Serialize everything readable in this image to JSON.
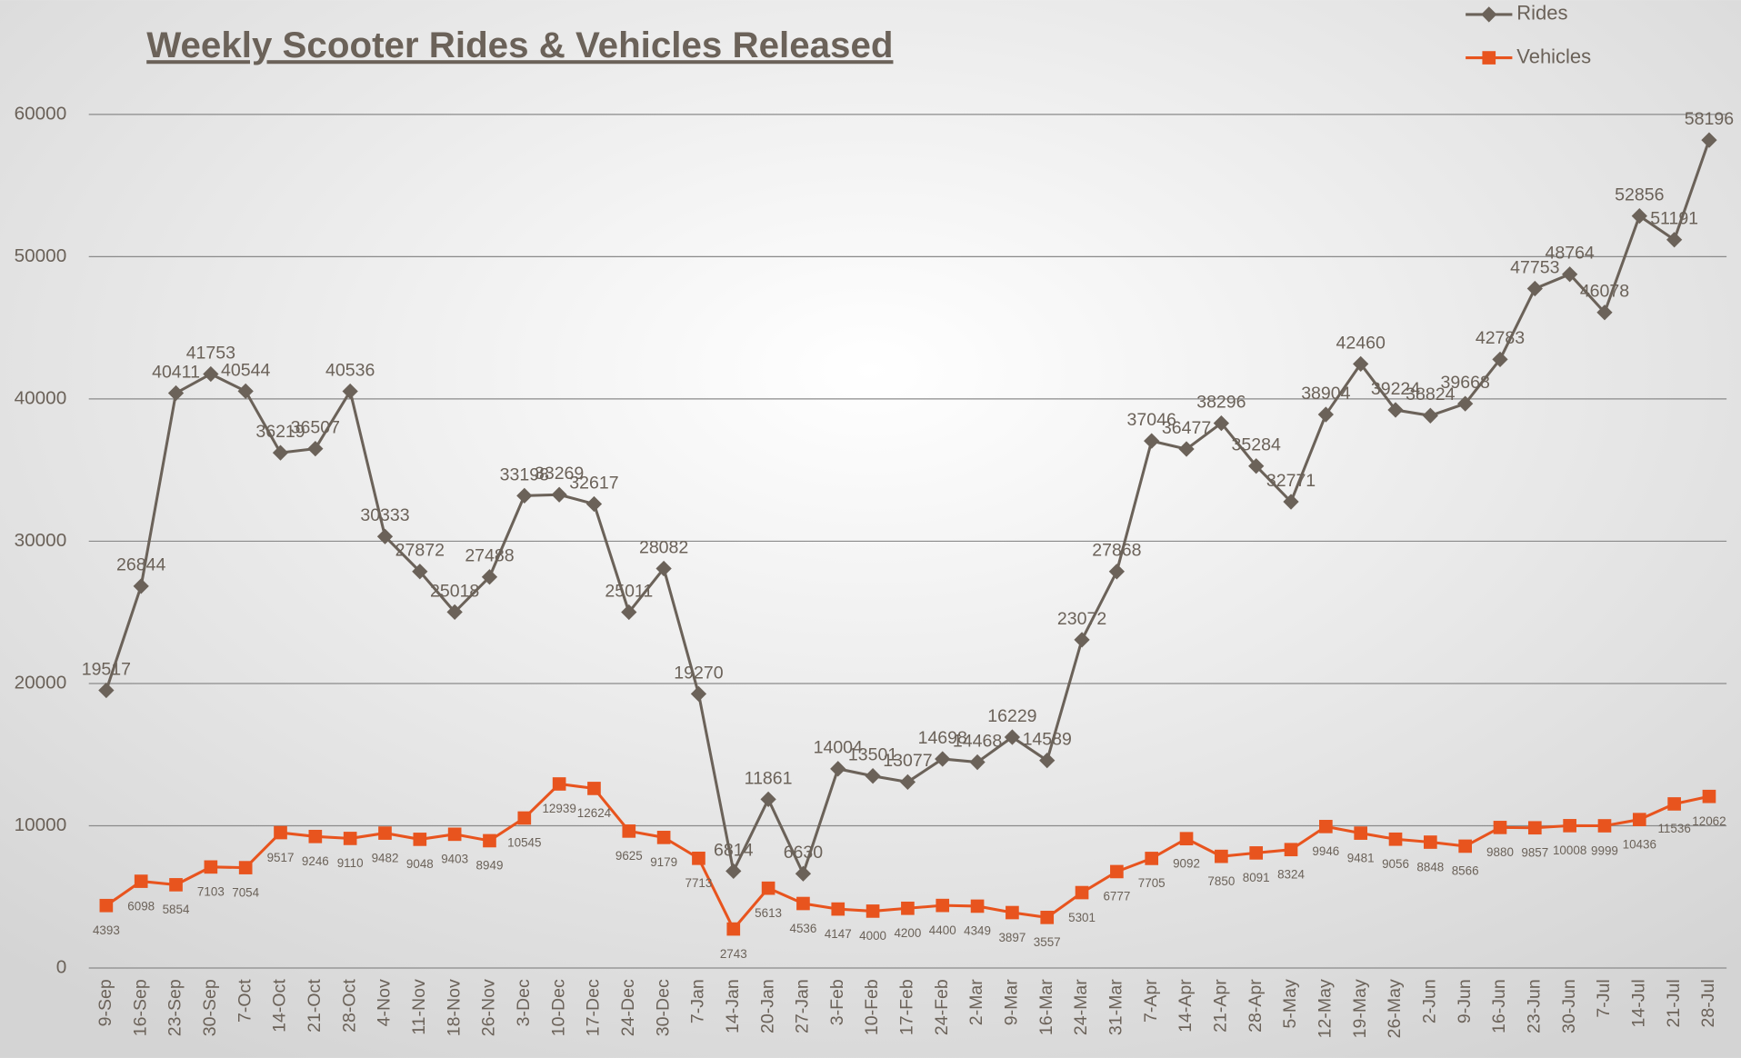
{
  "chart_data": {
    "type": "line",
    "title": "Weekly Scooter Rides & Vehicles Released",
    "categories": [
      "9-Sep",
      "16-Sep",
      "23-Sep",
      "30-Sep",
      "7-Oct",
      "14-Oct",
      "21-Oct",
      "28-Oct",
      "4-Nov",
      "11-Nov",
      "18-Nov",
      "26-Nov",
      "3-Dec",
      "10-Dec",
      "17-Dec",
      "24-Dec",
      "30-Dec",
      "7-Jan",
      "14-Jan",
      "20-Jan",
      "27-Jan",
      "3-Feb",
      "10-Feb",
      "17-Feb",
      "24-Feb",
      "2-Mar",
      "9-Mar",
      "16-Mar",
      "24-Mar",
      "31-Mar",
      "7-Apr",
      "14-Apr",
      "21-Apr",
      "28-Apr",
      "5-May",
      "12-May",
      "19-May",
      "26-May",
      "2-Jun",
      "9-Jun",
      "16-Jun",
      "23-Jun",
      "30-Jun",
      "7-Jul",
      "14-Jul",
      "21-Jul",
      "28-Jul"
    ],
    "series": [
      {
        "name": "Rides",
        "color": "#6b6259",
        "values": [
          19517,
          26844,
          40411,
          41753,
          40544,
          36219,
          36507,
          40536,
          30333,
          27872,
          25018,
          27488,
          33198,
          33269,
          32617,
          25011,
          28082,
          19270,
          6814,
          11861,
          6630,
          14004,
          13501,
          13077,
          14698,
          14468,
          16229,
          14589,
          23072,
          27868,
          37046,
          36477,
          38296,
          35284,
          32771,
          38904,
          42460,
          39224,
          38824,
          39668,
          42783,
          47753,
          48764,
          46078,
          52856,
          51191,
          58196
        ]
      },
      {
        "name": "Vehicles",
        "color": "#e8541e",
        "values": [
          4393,
          6098,
          5854,
          7103,
          7054,
          9517,
          9246,
          9110,
          9482,
          9048,
          9403,
          8949,
          10545,
          12939,
          12624,
          9625,
          9179,
          7713,
          2743,
          5613,
          4536,
          4147,
          4000,
          4200,
          4400,
          4349,
          3897,
          3557,
          5301,
          6777,
          7705,
          9092,
          7850,
          8091,
          8324,
          9946,
          9481,
          9056,
          8848,
          8566,
          9880,
          9857,
          10008,
          9999,
          10436,
          11536,
          12062
        ]
      }
    ],
    "ylim": [
      0,
      60000
    ],
    "yticks": [
      0,
      10000,
      20000,
      30000,
      40000,
      50000,
      60000
    ],
    "grid": true,
    "legend": "top-right"
  }
}
